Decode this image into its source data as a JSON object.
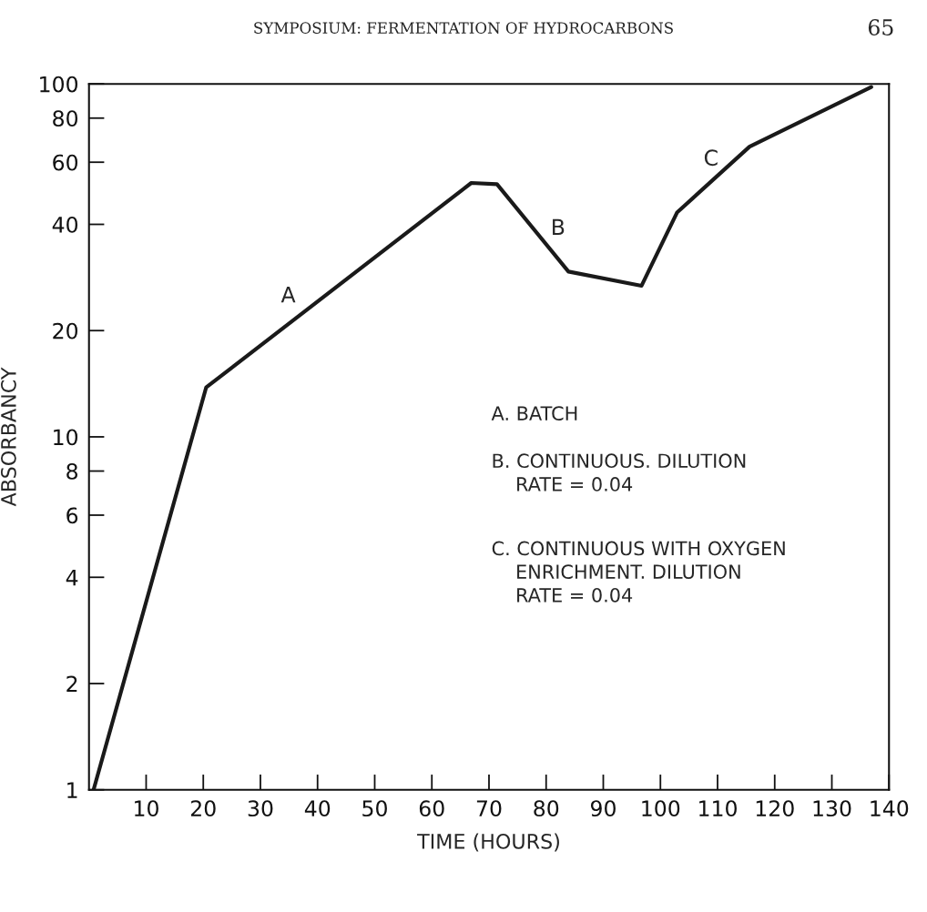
{
  "chart_data": {
    "type": "line",
    "title": "SYMPOSIUM: FERMENTATION OF HYDROCARBONS",
    "xlabel": "TIME (HOURS)",
    "ylabel": "ABSORBANCY",
    "series": [
      {
        "color": "#1a1a1a",
        "x": [
          0.8,
          20.5,
          66.9,
          71.4,
          83.9,
          96.7,
          102.9,
          115.6,
          136.9
        ],
        "values": [
          1,
          13.8,
          52.4,
          52,
          29.4,
          26.8,
          43.2,
          66.4,
          98
        ]
      }
    ],
    "xlim": [
      0,
      140
    ],
    "xticks": [
      10,
      20,
      30,
      40,
      50,
      60,
      70,
      80,
      90,
      100,
      110,
      120,
      130,
      140
    ],
    "ylim": [
      1,
      100
    ],
    "yticks": [
      1,
      2,
      4,
      6,
      8,
      10,
      20,
      40,
      60,
      80,
      100
    ],
    "log": "y",
    "grid": false,
    "marker": "none",
    "line_style": "solid",
    "annotations": [
      "65",
      "A",
      "B",
      "C",
      "A. BATCH",
      "B. CONTINUOUS. DILUTION\n    RATE = 0.04",
      "C. CONTINUOUS WITH OXYGEN\n    ENRICHMENT. DILUTION\n    RATE = 0.04"
    ]
  }
}
